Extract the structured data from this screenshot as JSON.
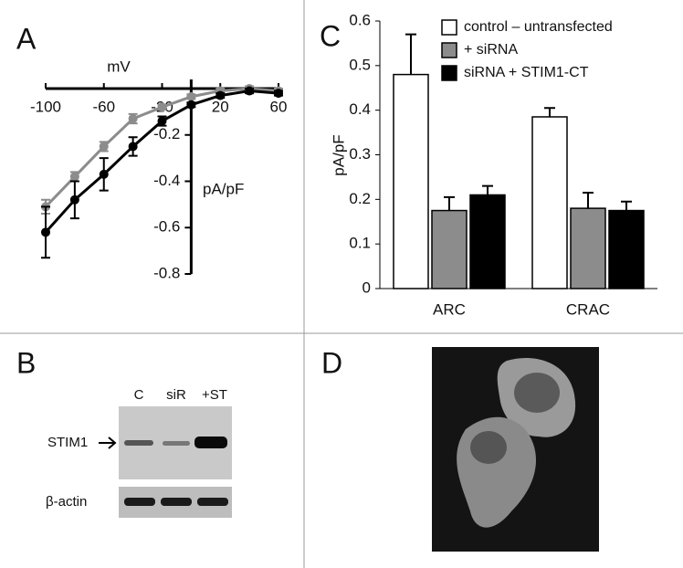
{
  "panel_labels": {
    "a": "A",
    "b": "B",
    "c": "C",
    "d": "D"
  },
  "blot": {
    "lanes": [
      "C",
      "siR",
      "+ST"
    ],
    "rows": [
      "STIM1",
      "β-actin"
    ]
  },
  "chart_data": [
    {
      "type": "line",
      "x_label": "mV",
      "y_label": "pA/pF",
      "x": [
        -100,
        -80,
        -60,
        -40,
        -20,
        0,
        20,
        40,
        60
      ],
      "xlim": [
        -100,
        60
      ],
      "ylim": [
        -0.8,
        0
      ],
      "xticks": [
        -100,
        -60,
        -20,
        20,
        60
      ],
      "yticks": [
        -0.2,
        -0.4,
        -0.6,
        -0.8
      ],
      "series": [
        {
          "color": "#8c8c8c",
          "values": [
            -0.51,
            -0.38,
            -0.25,
            -0.13,
            -0.08,
            -0.035,
            -0.01,
            0,
            -0.01
          ],
          "errors": [
            0.03,
            0.02,
            0.02,
            0.02,
            0.01,
            0.01,
            0.01,
            0.01,
            0.01
          ]
        },
        {
          "color": "#000000",
          "values": [
            -0.62,
            -0.48,
            -0.37,
            -0.25,
            -0.14,
            -0.07,
            -0.03,
            -0.01,
            -0.02
          ],
          "errors": [
            0.11,
            0.08,
            0.07,
            0.04,
            0.02,
            0.01,
            0.01,
            0.01,
            0.01
          ]
        }
      ]
    },
    {
      "type": "bar",
      "y_label": "pA/pF",
      "categories": [
        "ARC",
        "CRAC"
      ],
      "ylim": [
        0,
        0.6
      ],
      "yticks": [
        0,
        0.1,
        0.2,
        0.3,
        0.4,
        0.5,
        0.6
      ],
      "legend": "top-right",
      "series": [
        {
          "name": "control – untransfected",
          "color": "#ffffff",
          "values": [
            0.48,
            0.385
          ],
          "errors": [
            0.09,
            0.02
          ]
        },
        {
          "name": "+ siRNA",
          "color": "#8c8c8c",
          "values": [
            0.175,
            0.18
          ],
          "errors": [
            0.03,
            0.035
          ]
        },
        {
          "name": "siRNA + STIM1-CT",
          "color": "#000000",
          "values": [
            0.21,
            0.175
          ],
          "errors": [
            0.02,
            0.02
          ]
        }
      ]
    }
  ]
}
